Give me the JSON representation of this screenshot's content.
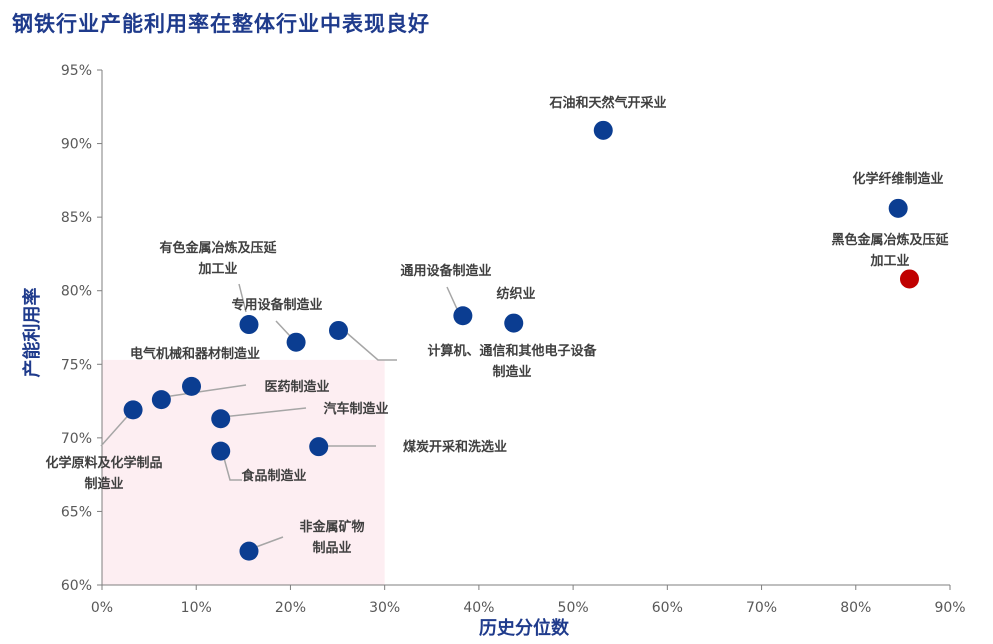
{
  "title": "钢铁行业产能利用率在整体行业中表现良好",
  "chart_data": {
    "type": "scatter",
    "title": "钢铁行业产能利用率在整体行业中表现良好",
    "xlabel": "历史分位数",
    "ylabel": "产能利用率",
    "xlim": [
      0,
      90
    ],
    "ylim": [
      60,
      95
    ],
    "x_ticks": [
      "0%",
      "10%",
      "20%",
      "30%",
      "40%",
      "50%",
      "60%",
      "70%",
      "80%",
      "90%"
    ],
    "y_ticks": [
      "60%",
      "65%",
      "70%",
      "75%",
      "80%",
      "85%",
      "90%",
      "95%"
    ],
    "grid": false,
    "highlight_region": {
      "x": [
        0,
        30
      ],
      "y": [
        60,
        75.3
      ],
      "color": "#fdeef2"
    },
    "colors": {
      "normal": "#0b3d91",
      "highlight": "#c00000"
    },
    "points": [
      {
        "label": [
          "石油和天然气开采业"
        ],
        "x": 53.2,
        "y": 90.9,
        "highlight": false
      },
      {
        "label": [
          "化学纤维制造业"
        ],
        "x": 84.5,
        "y": 85.6,
        "highlight": false
      },
      {
        "label": [
          "黑色金属冶炼及压延",
          "加工业"
        ],
        "x": 85.7,
        "y": 80.8,
        "highlight": true
      },
      {
        "label": [
          "通用设备制造业"
        ],
        "x": 38.3,
        "y": 78.3,
        "highlight": false
      },
      {
        "label": [
          "纺织业"
        ],
        "x": 43.7,
        "y": 77.8,
        "highlight": false
      },
      {
        "label": [
          "有色金属冶炼及压延",
          "加工业"
        ],
        "x": 15.6,
        "y": 77.7,
        "highlight": false
      },
      {
        "label": [
          "专用设备制造业"
        ],
        "x": 20.6,
        "y": 76.5,
        "highlight": false
      },
      {
        "label": [
          "计算机、通信和其他电子设备",
          "制造业"
        ],
        "x": 25.1,
        "y": 77.3,
        "highlight": false
      },
      {
        "label": [
          "电气机械和器材制造业"
        ],
        "x": 9.5,
        "y": 73.5,
        "highlight": false
      },
      {
        "label": [
          "医药制造业"
        ],
        "x": 6.3,
        "y": 72.6,
        "highlight": false
      },
      {
        "label": [
          "化学原料及化学制品",
          "制造业"
        ],
        "x": 3.3,
        "y": 71.9,
        "highlight": false
      },
      {
        "label": [
          "汽车制造业"
        ],
        "x": 12.6,
        "y": 71.3,
        "highlight": false
      },
      {
        "label": [
          "食品制造业"
        ],
        "x": 12.6,
        "y": 69.1,
        "highlight": false
      },
      {
        "label": [
          "煤炭开采和洗选业"
        ],
        "x": 23.0,
        "y": 69.4,
        "highlight": false
      },
      {
        "label": [
          "非金属矿物",
          "制品业"
        ],
        "x": 15.6,
        "y": 62.3,
        "highlight": false
      }
    ]
  }
}
